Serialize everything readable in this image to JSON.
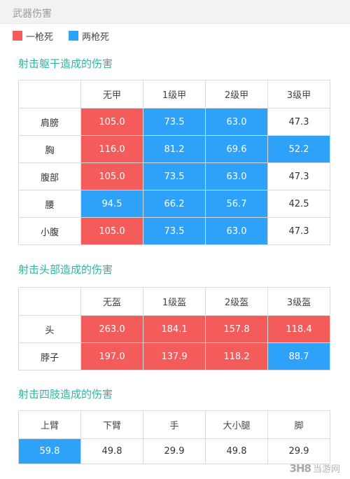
{
  "header": {
    "title": "武器伤害"
  },
  "legend": [
    {
      "label": "一枪死",
      "color": "#f45b5b"
    },
    {
      "label": "两枪死",
      "color": "#2ea2f8"
    }
  ],
  "sections": {
    "torso": {
      "title": "射击躯干造成的伤害",
      "columns": [
        "",
        "无甲",
        "1级甲",
        "2级甲",
        "3级甲"
      ],
      "rows": [
        {
          "label": "肩膀",
          "cells": [
            {
              "v": "105.0",
              "s": "red"
            },
            {
              "v": "73.5",
              "s": "blue"
            },
            {
              "v": "63.0",
              "s": "blue"
            },
            {
              "v": "47.3",
              "s": "none"
            }
          ]
        },
        {
          "label": "胸",
          "cells": [
            {
              "v": "116.0",
              "s": "red"
            },
            {
              "v": "81.2",
              "s": "blue"
            },
            {
              "v": "69.6",
              "s": "blue"
            },
            {
              "v": "52.2",
              "s": "blue"
            }
          ]
        },
        {
          "label": "腹部",
          "cells": [
            {
              "v": "105.0",
              "s": "red"
            },
            {
              "v": "73.5",
              "s": "blue"
            },
            {
              "v": "63.0",
              "s": "blue"
            },
            {
              "v": "47.3",
              "s": "none"
            }
          ]
        },
        {
          "label": "腰",
          "cells": [
            {
              "v": "94.5",
              "s": "blue"
            },
            {
              "v": "66.2",
              "s": "blue"
            },
            {
              "v": "56.7",
              "s": "blue"
            },
            {
              "v": "42.5",
              "s": "none"
            }
          ]
        },
        {
          "label": "小腹",
          "cells": [
            {
              "v": "105.0",
              "s": "red"
            },
            {
              "v": "73.5",
              "s": "blue"
            },
            {
              "v": "63.0",
              "s": "blue"
            },
            {
              "v": "47.3",
              "s": "none"
            }
          ]
        }
      ]
    },
    "head": {
      "title": "射击头部造成的伤害",
      "columns": [
        "",
        "无盔",
        "1级盔",
        "2级盔",
        "3级盔"
      ],
      "rows": [
        {
          "label": "头",
          "cells": [
            {
              "v": "263.0",
              "s": "red"
            },
            {
              "v": "184.1",
              "s": "red"
            },
            {
              "v": "157.8",
              "s": "red"
            },
            {
              "v": "118.4",
              "s": "red"
            }
          ]
        },
        {
          "label": "脖子",
          "cells": [
            {
              "v": "197.0",
              "s": "red"
            },
            {
              "v": "137.9",
              "s": "red"
            },
            {
              "v": "118.2",
              "s": "red"
            },
            {
              "v": "88.7",
              "s": "blue"
            }
          ]
        }
      ]
    },
    "limbs": {
      "title": "射击四肢造成的伤害",
      "columns": [
        "上臂",
        "下臂",
        "手",
        "大小腿",
        "脚"
      ],
      "values": [
        {
          "v": "59.8",
          "s": "blue"
        },
        {
          "v": "49.8",
          "s": "none"
        },
        {
          "v": "29.9",
          "s": "none"
        },
        {
          "v": "49.8",
          "s": "none"
        },
        {
          "v": "29.9",
          "s": "none"
        }
      ]
    }
  },
  "watermark": {
    "logo": "3H8",
    "text": "当游网"
  }
}
